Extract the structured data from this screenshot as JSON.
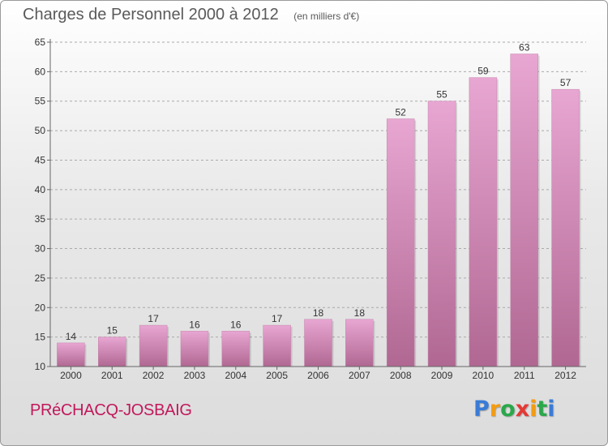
{
  "title": "Charges de Personnel 2000 à 2012",
  "subtitle": "(en milliers d'€)",
  "commune": "PRéCHACQ-JOSBAIG",
  "logo": {
    "letters": [
      {
        "char": "P",
        "color": "#3a7bd5"
      },
      {
        "char": "r",
        "color": "#f39c12"
      },
      {
        "char": "o",
        "color": "#2aa84a"
      },
      {
        "char": "x",
        "color": "#e53935"
      },
      {
        "char": "i",
        "color": "#f39c12"
      },
      {
        "char": "t",
        "color": "#2aa84a"
      },
      {
        "char": "i",
        "color": "#3a7bd5"
      }
    ]
  },
  "colors": {
    "bar_top": "#e8a6d2",
    "bar_bottom": "#b06892",
    "axis": "#666666",
    "grid": "#aaaaaa",
    "text": "#333333"
  },
  "chart_data": {
    "type": "bar",
    "title": "Charges de Personnel 2000 à 2012",
    "subtitle": "(en milliers d'€)",
    "categories": [
      "2000",
      "2001",
      "2002",
      "2003",
      "2004",
      "2005",
      "2006",
      "2007",
      "2008",
      "2009",
      "2010",
      "2011",
      "2012"
    ],
    "values": [
      14,
      15,
      17,
      16,
      16,
      17,
      18,
      18,
      52,
      55,
      59,
      63,
      57
    ],
    "data_labels": [
      "14",
      "15",
      "17",
      "16",
      "16",
      "17",
      "18",
      "18",
      "52",
      "55",
      "59",
      "63",
      "57"
    ],
    "ylim": [
      10,
      65
    ],
    "yticks": [
      10,
      15,
      20,
      25,
      30,
      35,
      40,
      45,
      50,
      55,
      60,
      65
    ],
    "ytick_labels": [
      "10",
      "15",
      "20",
      "25",
      "30",
      "35",
      "40",
      "45",
      "50",
      "55",
      "60",
      "65"
    ],
    "grid": "horizontal dashed",
    "legend": "none"
  }
}
